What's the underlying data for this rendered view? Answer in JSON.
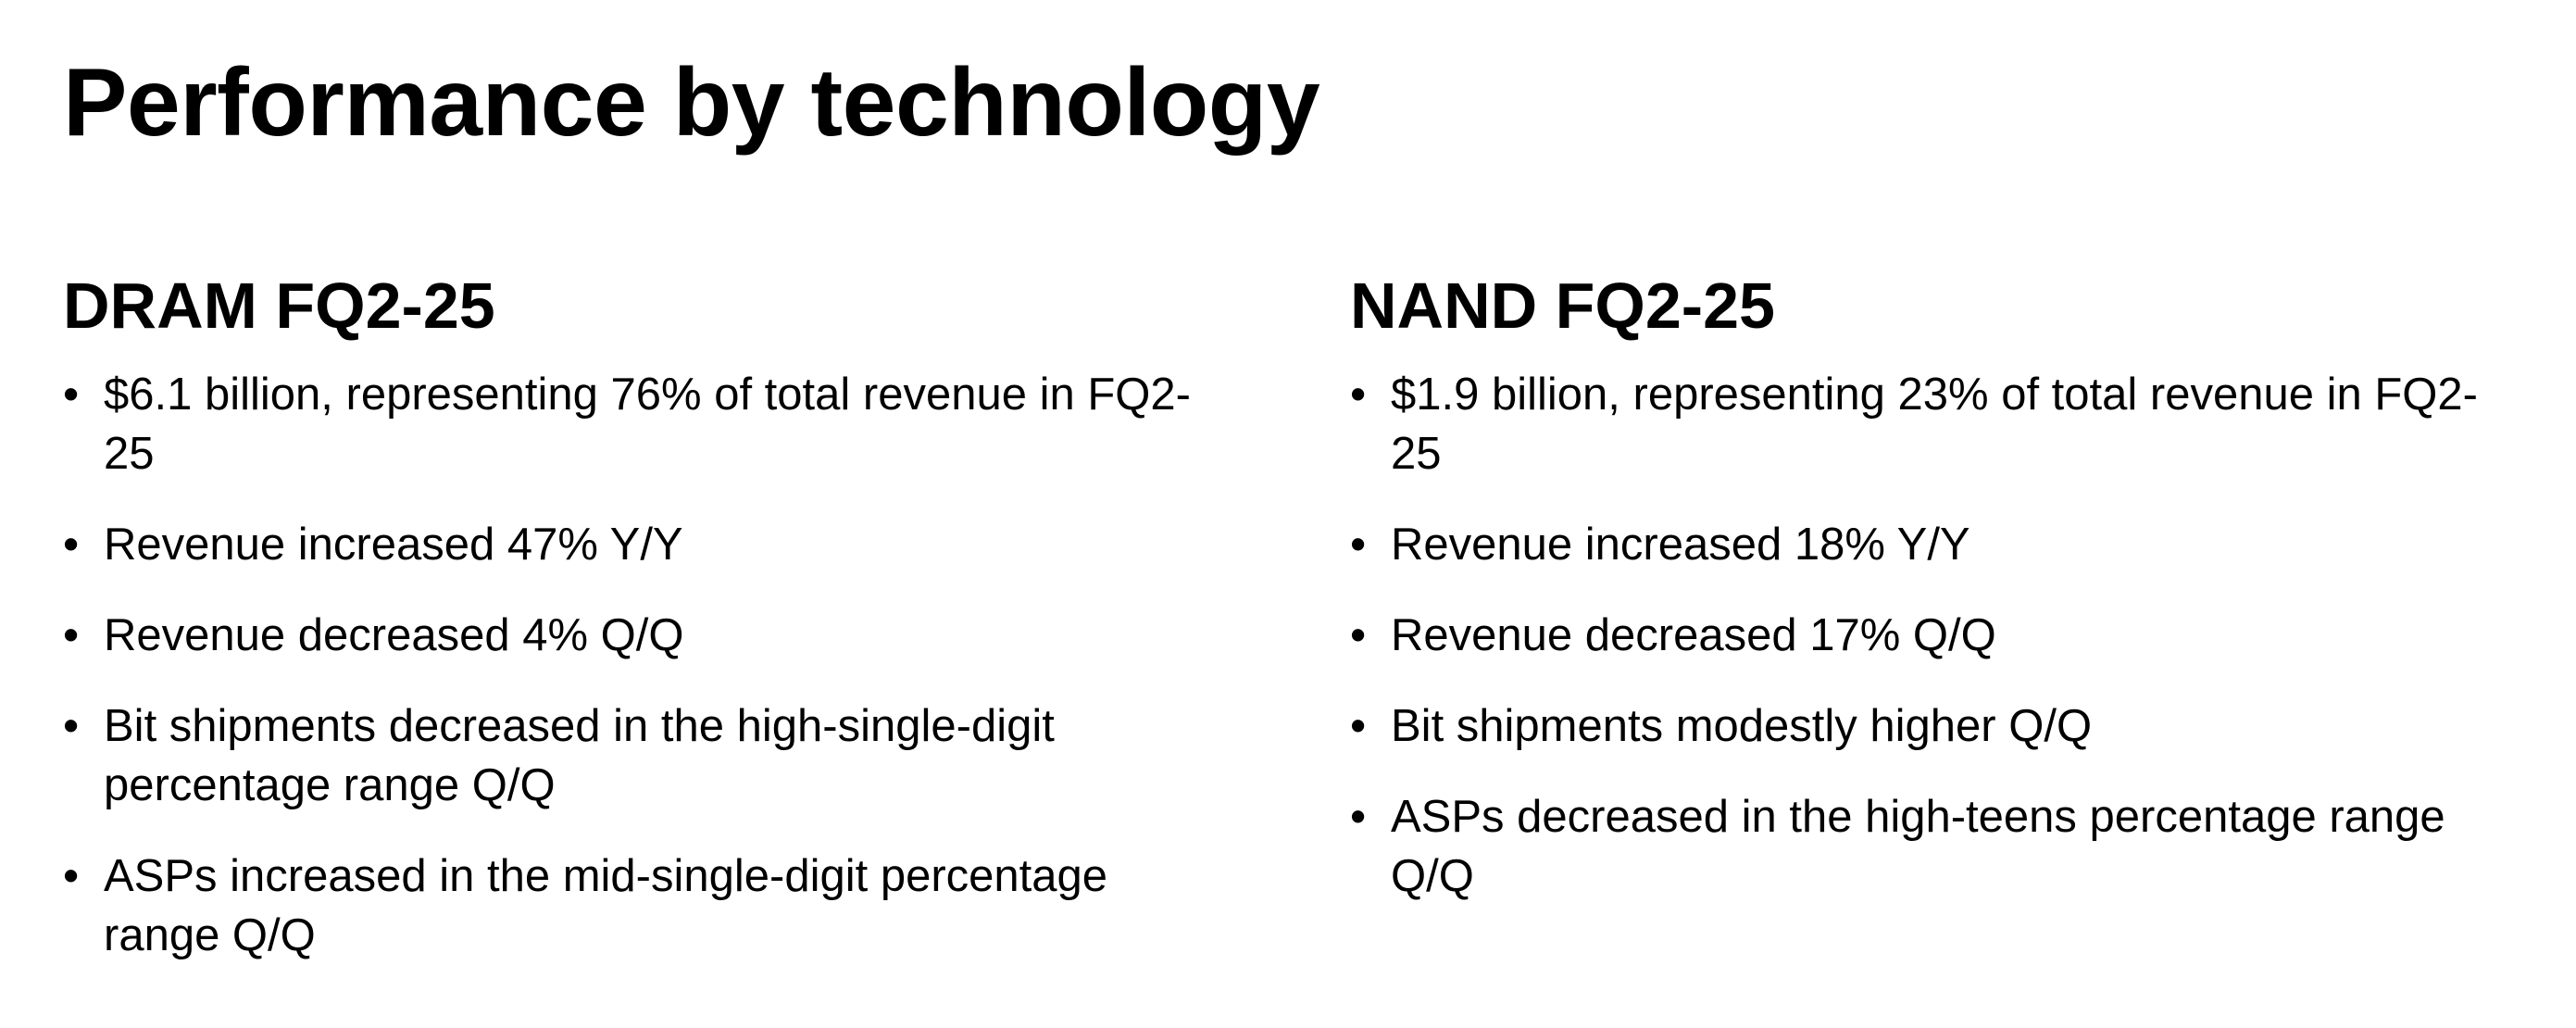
{
  "title": "Performance by technology",
  "dram": {
    "heading": "DRAM FQ2-25",
    "bullets": [
      "$6.1 billion, representing 76% of total revenue in FQ2-25",
      "Revenue increased 47% Y/Y",
      "Revenue decreased 4% Q/Q",
      "Bit shipments decreased in the high-single-digit percentage range Q/Q",
      "ASPs increased in the mid-single-digit percentage range Q/Q"
    ]
  },
  "nand": {
    "heading": "NAND FQ2-25",
    "bullets": [
      "$1.9 billion, representing 23% of total revenue in FQ2-25",
      "Revenue increased 18% Y/Y",
      "Revenue decreased 17% Q/Q",
      "Bit shipments modestly higher Q/Q",
      "ASPs decreased in the high-teens percentage range Q/Q"
    ]
  }
}
